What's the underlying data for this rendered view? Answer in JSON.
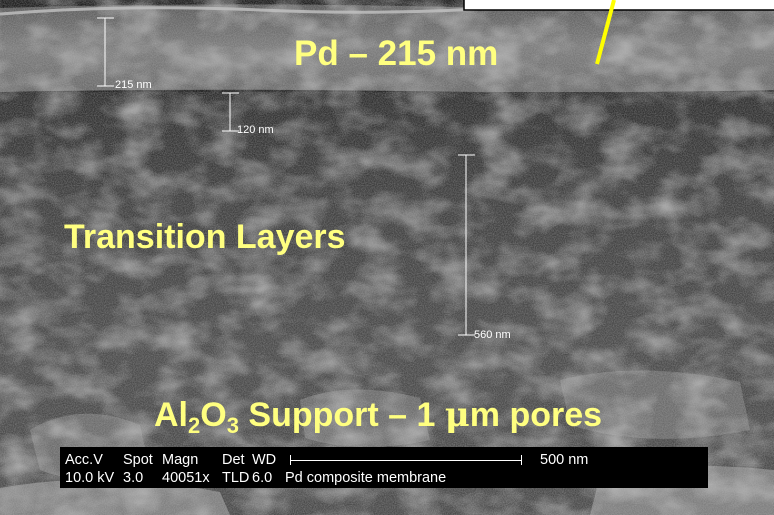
{
  "labels": {
    "pd_layer": "Pd – 215 nm",
    "transition": "Transition Layers",
    "support_prefix": "Al",
    "support_sub1": "2",
    "support_mid": "O",
    "support_sub2": "3",
    "support_suffix": " Support – 1 ",
    "support_mu": "μ",
    "support_end": "m pores"
  },
  "scale_markers": {
    "m215": "215 nm",
    "m120": "120 nm",
    "m560": "560 nm"
  },
  "databar": {
    "headers": [
      "Acc.V",
      "Spot",
      "Magn",
      "Det",
      "WD"
    ],
    "values": [
      "10.0 kV",
      "3.0",
      "40051x",
      "TLD",
      "6.0",
      "Pd composite membrane"
    ],
    "scale_label": "500 nm"
  },
  "colors": {
    "label": "#ffff80",
    "arrow": "#ffff00",
    "databar_bg": "#000000",
    "databar_text": "#ffffff"
  }
}
